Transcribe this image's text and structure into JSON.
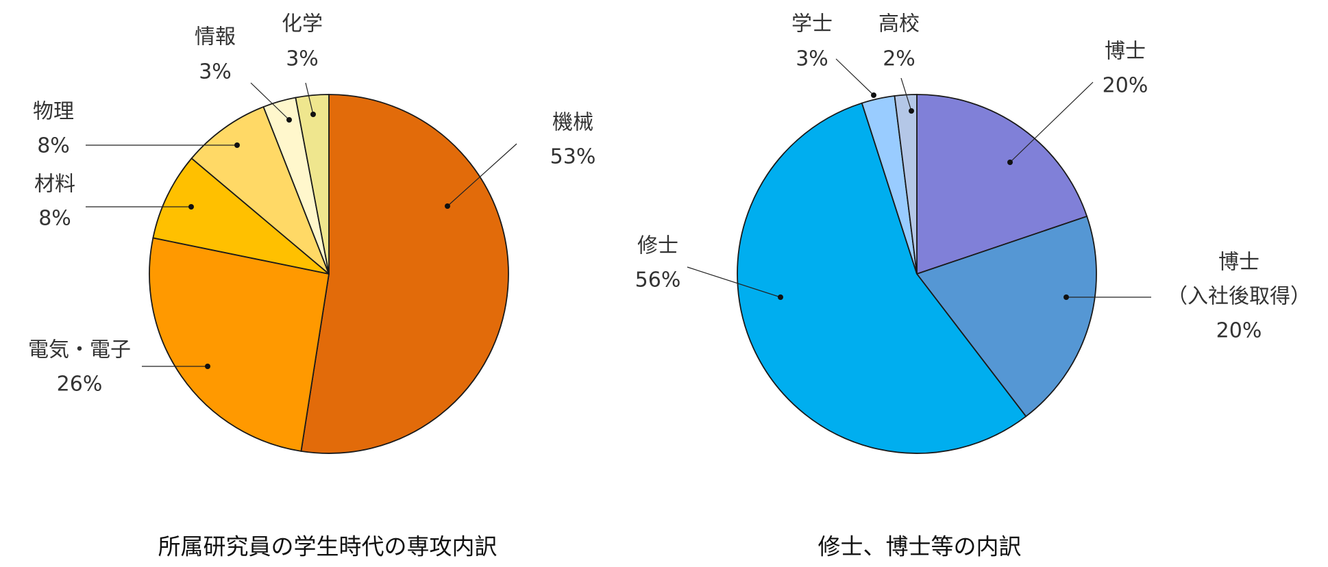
{
  "chart_data": [
    {
      "type": "pie",
      "title": "所属研究員の学生時代の専攻内訳",
      "slices": [
        {
          "label": "機械",
          "value": 53,
          "value_label": "53%",
          "color": "#E26B0A"
        },
        {
          "label": "電気・電子",
          "value": 26,
          "value_label": "26%",
          "color": "#FF9900"
        },
        {
          "label": "材料",
          "value": 8,
          "value_label": "8%",
          "color": "#FFC000"
        },
        {
          "label": "物理",
          "value": 8,
          "value_label": "8%",
          "color": "#FFD966"
        },
        {
          "label": "情報",
          "value": 3,
          "value_label": "3%",
          "color": "#FFF7CC"
        },
        {
          "label": "化学",
          "value": 3,
          "value_label": "3%",
          "color": "#EFE68E"
        }
      ]
    },
    {
      "type": "pie",
      "title": "修士、博士等の内訳",
      "slices": [
        {
          "label": "博士",
          "value": 20,
          "value_label": "20%",
          "color": "#8080D8"
        },
        {
          "label": "博士\n（入社後取得）",
          "value": 20,
          "value_label": "20%",
          "color": "#5597D4"
        },
        {
          "label": "修士",
          "value": 56,
          "value_label": "56%",
          "color": "#00AEEF"
        },
        {
          "label": "学士",
          "value": 3,
          "value_label": "3%",
          "color": "#99CCFF"
        },
        {
          "label": "高校",
          "value": 2,
          "value_label": "2%",
          "color": "#B4C7E7"
        }
      ]
    }
  ]
}
